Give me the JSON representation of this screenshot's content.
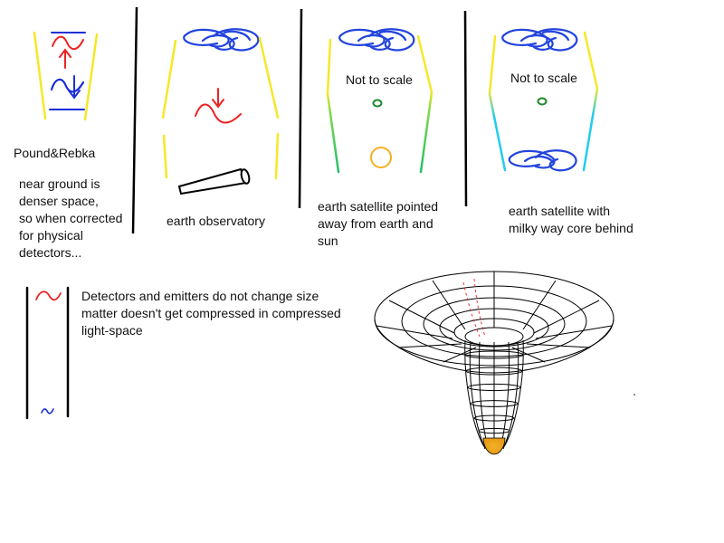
{
  "panels": {
    "pound": {
      "title": "Pound&Rebka",
      "description": [
        "near ground is",
        "denser space,",
        "so when corrected",
        "for physical",
        "detectors..."
      ]
    },
    "observatory": {
      "caption": "earth observatory"
    },
    "satellite_away": {
      "note": "Not to scale",
      "caption": [
        "earth satellite pointed",
        "away from earth and",
        "sun"
      ]
    },
    "satellite_core": {
      "note": "Not to scale",
      "caption": [
        "earth satellite with",
        "milky way core behind"
      ]
    }
  },
  "detectors": {
    "text": [
      "Detectors and emitters do not change size",
      "matter doesn't get compressed in compressed",
      "light-space"
    ]
  },
  "colors": {
    "yellow_wall": "#f5e829",
    "red_wave": "#ee2222",
    "blue_wave": "#1a2fd8",
    "galaxy_blue": "#2244dd",
    "green_wall": "#33cc55",
    "cyan_wall": "#22ccee",
    "earth_green": "#1f8a2e",
    "sun_orange": "#f4b020",
    "well_glow": "#e8a11a"
  }
}
